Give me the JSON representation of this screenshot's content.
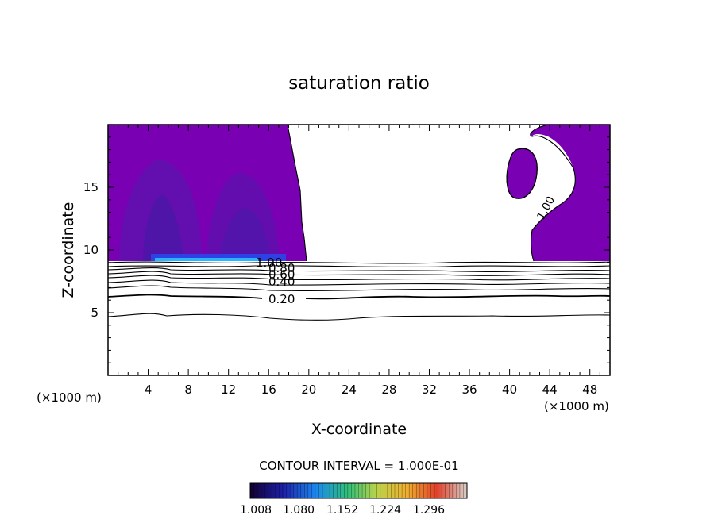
{
  "chart_data": {
    "type": "contour",
    "title": "saturation ratio",
    "xlabel": "X-coordinate",
    "ylabel": "Z-coordinate",
    "x_units": "(×1000 m)",
    "y_units": "(×1000 m)",
    "xlim": [
      0,
      50
    ],
    "ylim": [
      0,
      20
    ],
    "x_ticks": [
      4,
      8,
      12,
      16,
      20,
      24,
      28,
      32,
      36,
      40,
      44,
      48
    ],
    "y_ticks": [
      5,
      10,
      15
    ],
    "contour_interval_label": "CONTOUR INTERVAL = 1.000E-01",
    "colorbar_ticks": [
      "1.008",
      "1.080",
      "1.152",
      "1.224",
      "1.296"
    ],
    "contour_labels": [
      "0.20",
      "0.40",
      "0.60",
      "0.80",
      "1.00"
    ],
    "contour_levels": [
      0.1,
      0.2,
      0.3,
      0.4,
      0.5,
      0.6,
      0.7,
      0.8,
      0.9,
      1.0
    ],
    "colors": {
      "fill_base": "#7a00b4",
      "fill_core": "#3b14a0",
      "fill_low": "#1f5cff"
    }
  }
}
